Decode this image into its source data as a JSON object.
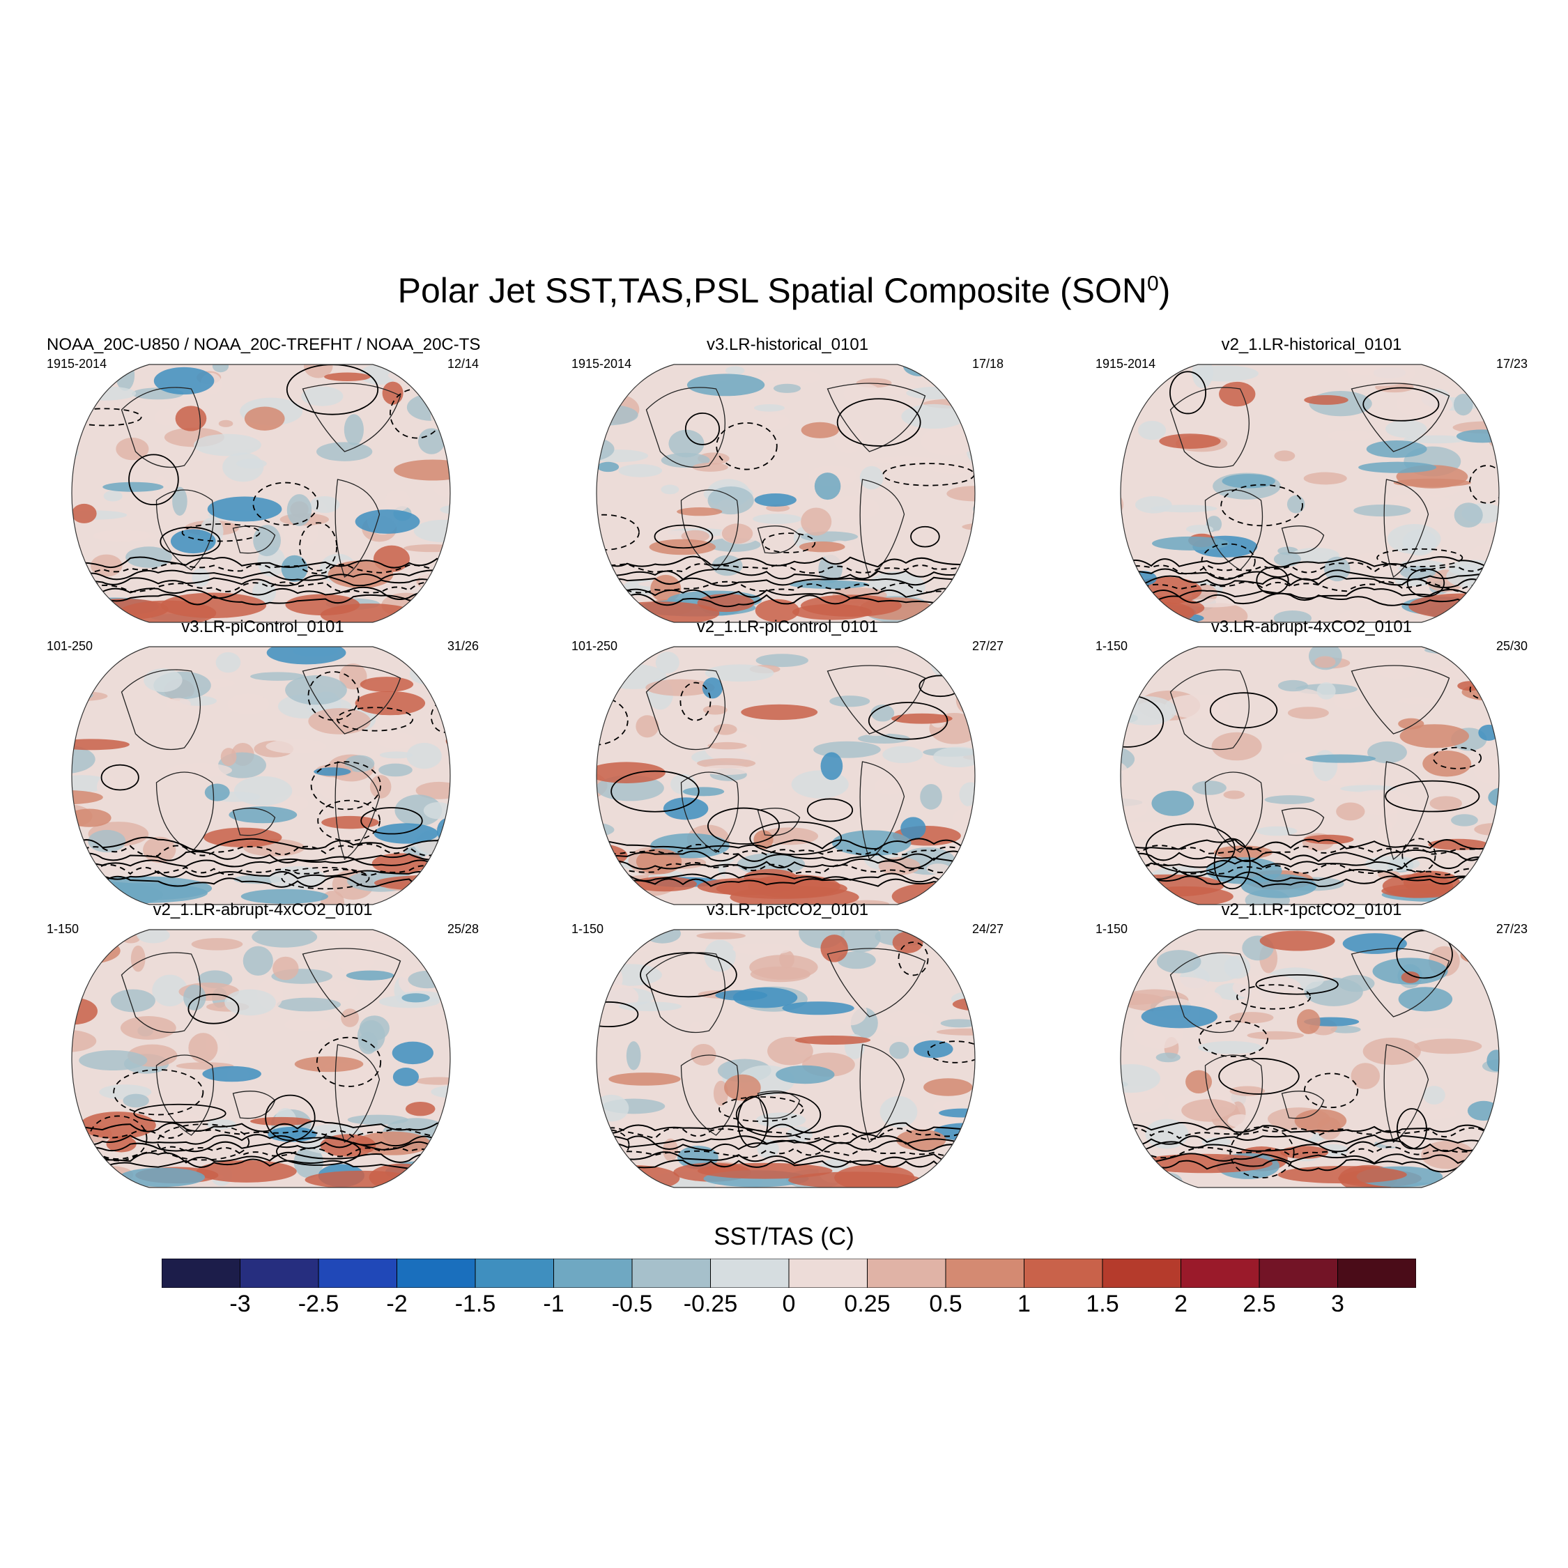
{
  "title": {
    "main": "Polar Jet SST,TAS,PSL Spatial Composite (SON",
    "sup": "0",
    "close": ")"
  },
  "panels": [
    {
      "title": "NOAA_20C-U850 / NOAA_20C-TREFHT / NOAA_20C-TS",
      "left": "1915-2014",
      "right": "12/14",
      "seed": 11
    },
    {
      "title": "v3.LR-historical_0101",
      "left": "1915-2014",
      "right": "17/18",
      "seed": 23
    },
    {
      "title": "v2_1.LR-historical_0101",
      "left": "1915-2014",
      "right": "17/23",
      "seed": 37
    },
    {
      "title": "v3.LR-piControl_0101",
      "left": "101-250",
      "right": "31/26",
      "seed": 41
    },
    {
      "title": "v2_1.LR-piControl_0101",
      "left": "101-250",
      "right": "27/27",
      "seed": 53
    },
    {
      "title": "v3.LR-abrupt-4xCO2_0101",
      "left": "1-150",
      "right": "25/30",
      "seed": 67
    },
    {
      "title": "v2_1.LR-abrupt-4xCO2_0101",
      "left": "1-150",
      "right": "25/28",
      "seed": 71
    },
    {
      "title": "v3.LR-1pctCO2_0101",
      "left": "1-150",
      "right": "24/27",
      "seed": 83
    },
    {
      "title": "v2_1.LR-1pctCO2_0101",
      "left": "1-150",
      "right": "27/23",
      "seed": 97
    }
  ],
  "chart_data": {
    "type": "heatmap",
    "title": "Polar Jet SST,TAS,PSL Spatial Composite (SON0)",
    "projection": "Robinson world map, 3x3 panels",
    "colorbar": {
      "label": "SST/TAS (C)",
      "ticks": [
        "-3",
        "-2.5",
        "-2",
        "-1.5",
        "-1",
        "-0.5",
        "-0.25",
        "0",
        "0.25",
        "0.5",
        "1",
        "1.5",
        "2",
        "2.5",
        "3"
      ],
      "colors": [
        "#1c1d4a",
        "#262e7f",
        "#2048b8",
        "#1a6fbd",
        "#3f8fbf",
        "#6fa8c2",
        "#a6c0cb",
        "#d6dde0",
        "#eddcd8",
        "#e0b3a6",
        "#d48a72",
        "#c9624a",
        "#b53b2c",
        "#9a1a2a",
        "#731426",
        "#4a0c18"
      ]
    },
    "contours": "PSL anomalies (solid positive, dashed negative)"
  }
}
